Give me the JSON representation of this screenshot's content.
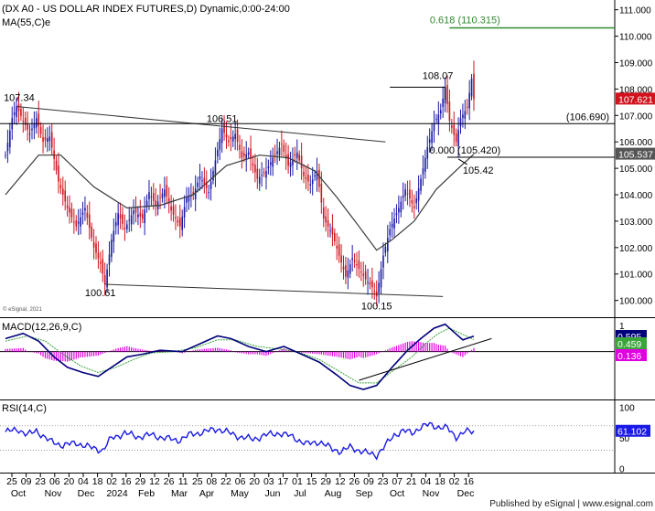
{
  "header": {
    "title": "(DX A0 - US DOLLAR INDEX FUTURES,D) Dynamic,0:00-24:00",
    "ma_label": "MA(55,C)e"
  },
  "watermark": "© eSignal, 2021",
  "footer": "Published by eSignal | www.esignal.com",
  "colors": {
    "up": "#1a1aa8",
    "down": "#d0131d",
    "ma": "#3a3a3a",
    "macd": "#00007a",
    "signal": "#3aa63a",
    "histogram": "#e000e0",
    "rsi": "#1a1ae6",
    "fib": "#2e8b2e",
    "last_price_bg": "#d0131d",
    "macd_box_bg": "#3aa63a",
    "rsi_box_bg": "#1a1ae6"
  },
  "chart_data": [
    {
      "type": "candlestick",
      "title": "(DX A0 - US DOLLAR INDEX FUTURES,D) Dynamic,0:00-24:00",
      "ylim": [
        99.4,
        111.3
      ],
      "y_ticks": [
        100,
        101,
        102,
        103,
        104,
        105,
        106,
        107,
        108,
        109,
        110,
        111
      ],
      "y_tick_labels": [
        "100.000",
        "101.000",
        "102.000",
        "103.000",
        "104.000",
        "105.000",
        "106.000",
        "107.000",
        "108.000",
        "109.000",
        "110.000",
        "111.000"
      ],
      "x_tick_labels": [
        "25",
        "09",
        "23",
        "06",
        "20",
        "04",
        "18",
        "02",
        "16",
        "29",
        "12",
        "26",
        "11",
        "25",
        "08",
        "22",
        "06",
        "20",
        "03",
        "17",
        "01",
        "15",
        "29",
        "12",
        "26",
        "09",
        "23",
        "07",
        "21",
        "04",
        "18",
        "02",
        "16"
      ],
      "month_labels": [
        "Oct",
        "Nov",
        "Dec",
        "2024",
        "Feb",
        "Mar",
        "Apr",
        "May",
        "Jun",
        "Jul",
        "Aug",
        "Sep",
        "Oct",
        "Nov",
        "Dec"
      ],
      "price_path": [
        [
          0,
          105.5
        ],
        [
          3,
          106.9
        ],
        [
          5,
          107.34
        ],
        [
          8,
          106.8
        ],
        [
          11,
          106.3
        ],
        [
          14,
          106.9
        ],
        [
          17,
          106.0
        ],
        [
          20,
          106.2
        ],
        [
          24,
          104.5
        ],
        [
          28,
          103.5
        ],
        [
          32,
          102.8
        ],
        [
          36,
          103.5
        ],
        [
          40,
          102.0
        ],
        [
          43,
          101.4
        ],
        [
          45,
          100.61
        ],
        [
          48,
          102.3
        ],
        [
          51,
          103.3
        ],
        [
          54,
          102.7
        ],
        [
          58,
          103.4
        ],
        [
          62,
          103.1
        ],
        [
          65,
          104.1
        ],
        [
          68,
          103.6
        ],
        [
          72,
          104.2
        ],
        [
          75,
          103.4
        ],
        [
          79,
          102.8
        ],
        [
          82,
          103.9
        ],
        [
          85,
          104.0
        ],
        [
          88,
          104.7
        ],
        [
          92,
          104.1
        ],
        [
          95,
          105.3
        ],
        [
          98,
          106.51
        ],
        [
          101,
          106.0
        ],
        [
          104,
          106.3
        ],
        [
          107,
          105.4
        ],
        [
          110,
          105.6
        ],
        [
          114,
          104.6
        ],
        [
          118,
          104.9
        ],
        [
          121,
          105.4
        ],
        [
          125,
          105.9
        ],
        [
          128,
          105.1
        ],
        [
          132,
          105.6
        ],
        [
          135,
          104.7
        ],
        [
          138,
          104.4
        ],
        [
          141,
          104.9
        ],
        [
          144,
          103.1
        ],
        [
          148,
          102.5
        ],
        [
          151,
          101.7
        ],
        [
          154,
          100.9
        ],
        [
          157,
          101.6
        ],
        [
          160,
          101.2
        ],
        [
          163,
          100.8
        ],
        [
          166,
          100.5
        ],
        [
          168,
          100.15
        ],
        [
          171,
          101.7
        ],
        [
          174,
          102.7
        ],
        [
          178,
          103.5
        ],
        [
          181,
          104.2
        ],
        [
          185,
          103.5
        ],
        [
          188,
          104.6
        ],
        [
          191,
          105.8
        ],
        [
          194,
          106.7
        ],
        [
          197,
          107.2
        ],
        [
          199,
          108.07
        ],
        [
          201,
          106.8
        ],
        [
          204,
          106.0
        ],
        [
          206,
          106.9
        ],
        [
          209,
          107.3
        ],
        [
          211,
          108.4
        ],
        [
          212,
          107.621
        ]
      ],
      "moving_average": {
        "name": "MA(55,C)e",
        "path": [
          [
            0,
            104.0
          ],
          [
            15,
            105.5
          ],
          [
            25,
            105.5
          ],
          [
            40,
            104.3
          ],
          [
            55,
            103.5
          ],
          [
            70,
            103.6
          ],
          [
            85,
            104.0
          ],
          [
            100,
            105.1
          ],
          [
            115,
            105.5
          ],
          [
            128,
            105.4
          ],
          [
            140,
            104.9
          ],
          [
            150,
            103.9
          ],
          [
            160,
            102.8
          ],
          [
            168,
            101.9
          ],
          [
            175,
            102.3
          ],
          [
            185,
            103.0
          ],
          [
            195,
            104.2
          ],
          [
            205,
            105.0
          ],
          [
            212,
            105.537
          ]
        ]
      },
      "annotations": [
        {
          "text": "107.34",
          "x": 5,
          "y": 107.34
        },
        {
          "text": "106.51",
          "x": 98,
          "y": 106.51
        },
        {
          "text": "100.61",
          "x": 45,
          "y": 100.61
        },
        {
          "text": "100.15",
          "x": 168,
          "y": 100.15
        },
        {
          "text": "108.07",
          "x": 199,
          "y": 108.07
        },
        {
          "text": "105.42",
          "x": 209,
          "y": 105.42
        }
      ],
      "fibonacci": [
        {
          "text": "0.618 (110.315)",
          "y": 110.315
        },
        {
          "text": "0.000 (105.420)",
          "y": 105.42
        }
      ],
      "horizontal_levels": [
        {
          "text": "(106.690)",
          "y": 106.69
        },
        {
          "y": 105.42
        }
      ],
      "trendlines": [
        {
          "from": [
            5,
            107.34
          ],
          "to": [
            172,
            106.0
          ]
        },
        {
          "from": [
            45,
            100.61
          ],
          "to": [
            198,
            100.15
          ]
        }
      ],
      "last_price": "107.621",
      "ma_last": "105.537"
    },
    {
      "type": "line",
      "title": "MACD(12,26,9,C)",
      "ylim": [
        -1.8,
        1.25
      ],
      "y_ticks": [
        1,
        0
      ],
      "y_tick_labels": [
        "1",
        "0"
      ],
      "macd_path": [
        [
          0,
          0.5
        ],
        [
          8,
          0.7
        ],
        [
          15,
          0.4
        ],
        [
          22,
          -0.2
        ],
        [
          28,
          -0.6
        ],
        [
          35,
          -0.8
        ],
        [
          42,
          -0.95
        ],
        [
          48,
          -0.6
        ],
        [
          55,
          -0.2
        ],
        [
          62,
          -0.1
        ],
        [
          70,
          0.05
        ],
        [
          80,
          0.0
        ],
        [
          88,
          0.3
        ],
        [
          96,
          0.6
        ],
        [
          102,
          0.5
        ],
        [
          110,
          0.2
        ],
        [
          118,
          0.0
        ],
        [
          126,
          0.2
        ],
        [
          134,
          -0.1
        ],
        [
          142,
          -0.4
        ],
        [
          150,
          -0.9
        ],
        [
          156,
          -1.3
        ],
        [
          162,
          -1.45
        ],
        [
          168,
          -1.3
        ],
        [
          175,
          -0.6
        ],
        [
          182,
          0.05
        ],
        [
          188,
          0.5
        ],
        [
          194,
          0.9
        ],
        [
          199,
          1.05
        ],
        [
          203,
          0.75
        ],
        [
          207,
          0.45
        ],
        [
          212,
          0.595
        ]
      ],
      "signal_path": [
        [
          0,
          0.4
        ],
        [
          10,
          0.6
        ],
        [
          18,
          0.4
        ],
        [
          26,
          -0.1
        ],
        [
          34,
          -0.55
        ],
        [
          42,
          -0.8
        ],
        [
          50,
          -0.6
        ],
        [
          58,
          -0.3
        ],
        [
          66,
          -0.05
        ],
        [
          76,
          0.0
        ],
        [
          86,
          0.15
        ],
        [
          96,
          0.45
        ],
        [
          104,
          0.45
        ],
        [
          114,
          0.2
        ],
        [
          124,
          0.1
        ],
        [
          132,
          0.0
        ],
        [
          142,
          -0.3
        ],
        [
          152,
          -0.8
        ],
        [
          160,
          -1.2
        ],
        [
          168,
          -1.2
        ],
        [
          176,
          -0.7
        ],
        [
          184,
          -0.2
        ],
        [
          190,
          0.3
        ],
        [
          196,
          0.7
        ],
        [
          201,
          0.9
        ],
        [
          206,
          0.7
        ],
        [
          212,
          0.459
        ]
      ],
      "macd_last": "0.595",
      "signal_last": "0.459",
      "histogram_last": "0.136",
      "trendline": {
        "from": [
          160,
          -1.1
        ],
        "to": [
          220,
          0.5
        ]
      }
    },
    {
      "type": "line",
      "title": "RSI(14,C)",
      "ylim": [
        -5,
        110
      ],
      "y_ticks": [
        100,
        50,
        0
      ],
      "y_tick_labels": [
        "100",
        "50",
        "0"
      ],
      "reference_levels": [
        70,
        30
      ],
      "path": [
        [
          0,
          60
        ],
        [
          6,
          64
        ],
        [
          10,
          55
        ],
        [
          14,
          62
        ],
        [
          20,
          45
        ],
        [
          26,
          38
        ],
        [
          32,
          42
        ],
        [
          38,
          35
        ],
        [
          44,
          30
        ],
        [
          48,
          50
        ],
        [
          54,
          58
        ],
        [
          60,
          52
        ],
        [
          66,
          55
        ],
        [
          72,
          50
        ],
        [
          78,
          46
        ],
        [
          84,
          56
        ],
        [
          90,
          60
        ],
        [
          96,
          65
        ],
        [
          100,
          60
        ],
        [
          106,
          52
        ],
        [
          112,
          48
        ],
        [
          118,
          55
        ],
        [
          124,
          58
        ],
        [
          130,
          52
        ],
        [
          136,
          40
        ],
        [
          142,
          44
        ],
        [
          148,
          32
        ],
        [
          152,
          28
        ],
        [
          156,
          35
        ],
        [
          160,
          30
        ],
        [
          164,
          25
        ],
        [
          168,
          22
        ],
        [
          172,
          38
        ],
        [
          176,
          55
        ],
        [
          180,
          62
        ],
        [
          184,
          58
        ],
        [
          188,
          68
        ],
        [
          192,
          72
        ],
        [
          196,
          68
        ],
        [
          200,
          66
        ],
        [
          204,
          52
        ],
        [
          208,
          60
        ],
        [
          212,
          61.102
        ]
      ],
      "last_value": "61.102"
    }
  ]
}
